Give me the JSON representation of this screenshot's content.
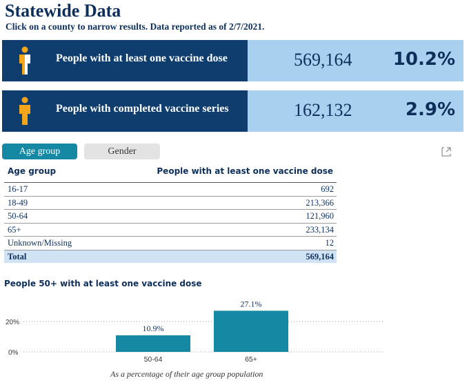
{
  "header": {
    "title": "Statewide Data",
    "subtitle": "Click on a county to narrow results. Data reported as of 2/7/2021."
  },
  "cards": [
    {
      "label": "People with at least one vaccine dose",
      "count": "569,164",
      "percent": "10.2%",
      "icon": "person-half-filled-icon"
    },
    {
      "label": "People with completed vaccine series",
      "count": "162,132",
      "percent": "2.9%",
      "icon": "person-filled-icon"
    }
  ],
  "tabs": {
    "age": "Age group",
    "gender": "Gender"
  },
  "table": {
    "col1": "Age group",
    "col2": "People with at least one vaccine dose",
    "rows": [
      {
        "group": "16-17",
        "value": "692"
      },
      {
        "group": "18-49",
        "value": "213,366"
      },
      {
        "group": "50-64",
        "value": "121,960"
      },
      {
        "group": "65+",
        "value": "233,134"
      },
      {
        "group": "Unknown/Missing",
        "value": "12"
      }
    ],
    "total": {
      "group": "Total",
      "value": "569,164"
    }
  },
  "colors": {
    "navy": "#0f3d6e",
    "light_blue": "#a9d0ee",
    "teal": "#1588a3",
    "orange": "#f3a51b"
  },
  "chart_data": {
    "type": "bar",
    "title": "People 50+ with at least one vaccine dose",
    "categories": [
      "50-64",
      "65+"
    ],
    "values": [
      10.9,
      27.1
    ],
    "value_labels": [
      "10.9%",
      "27.1%"
    ],
    "yticks": [
      "0%",
      "20%"
    ],
    "ylim": [
      0,
      30
    ],
    "caption": "As a percentage of their age group population",
    "grid": true
  }
}
